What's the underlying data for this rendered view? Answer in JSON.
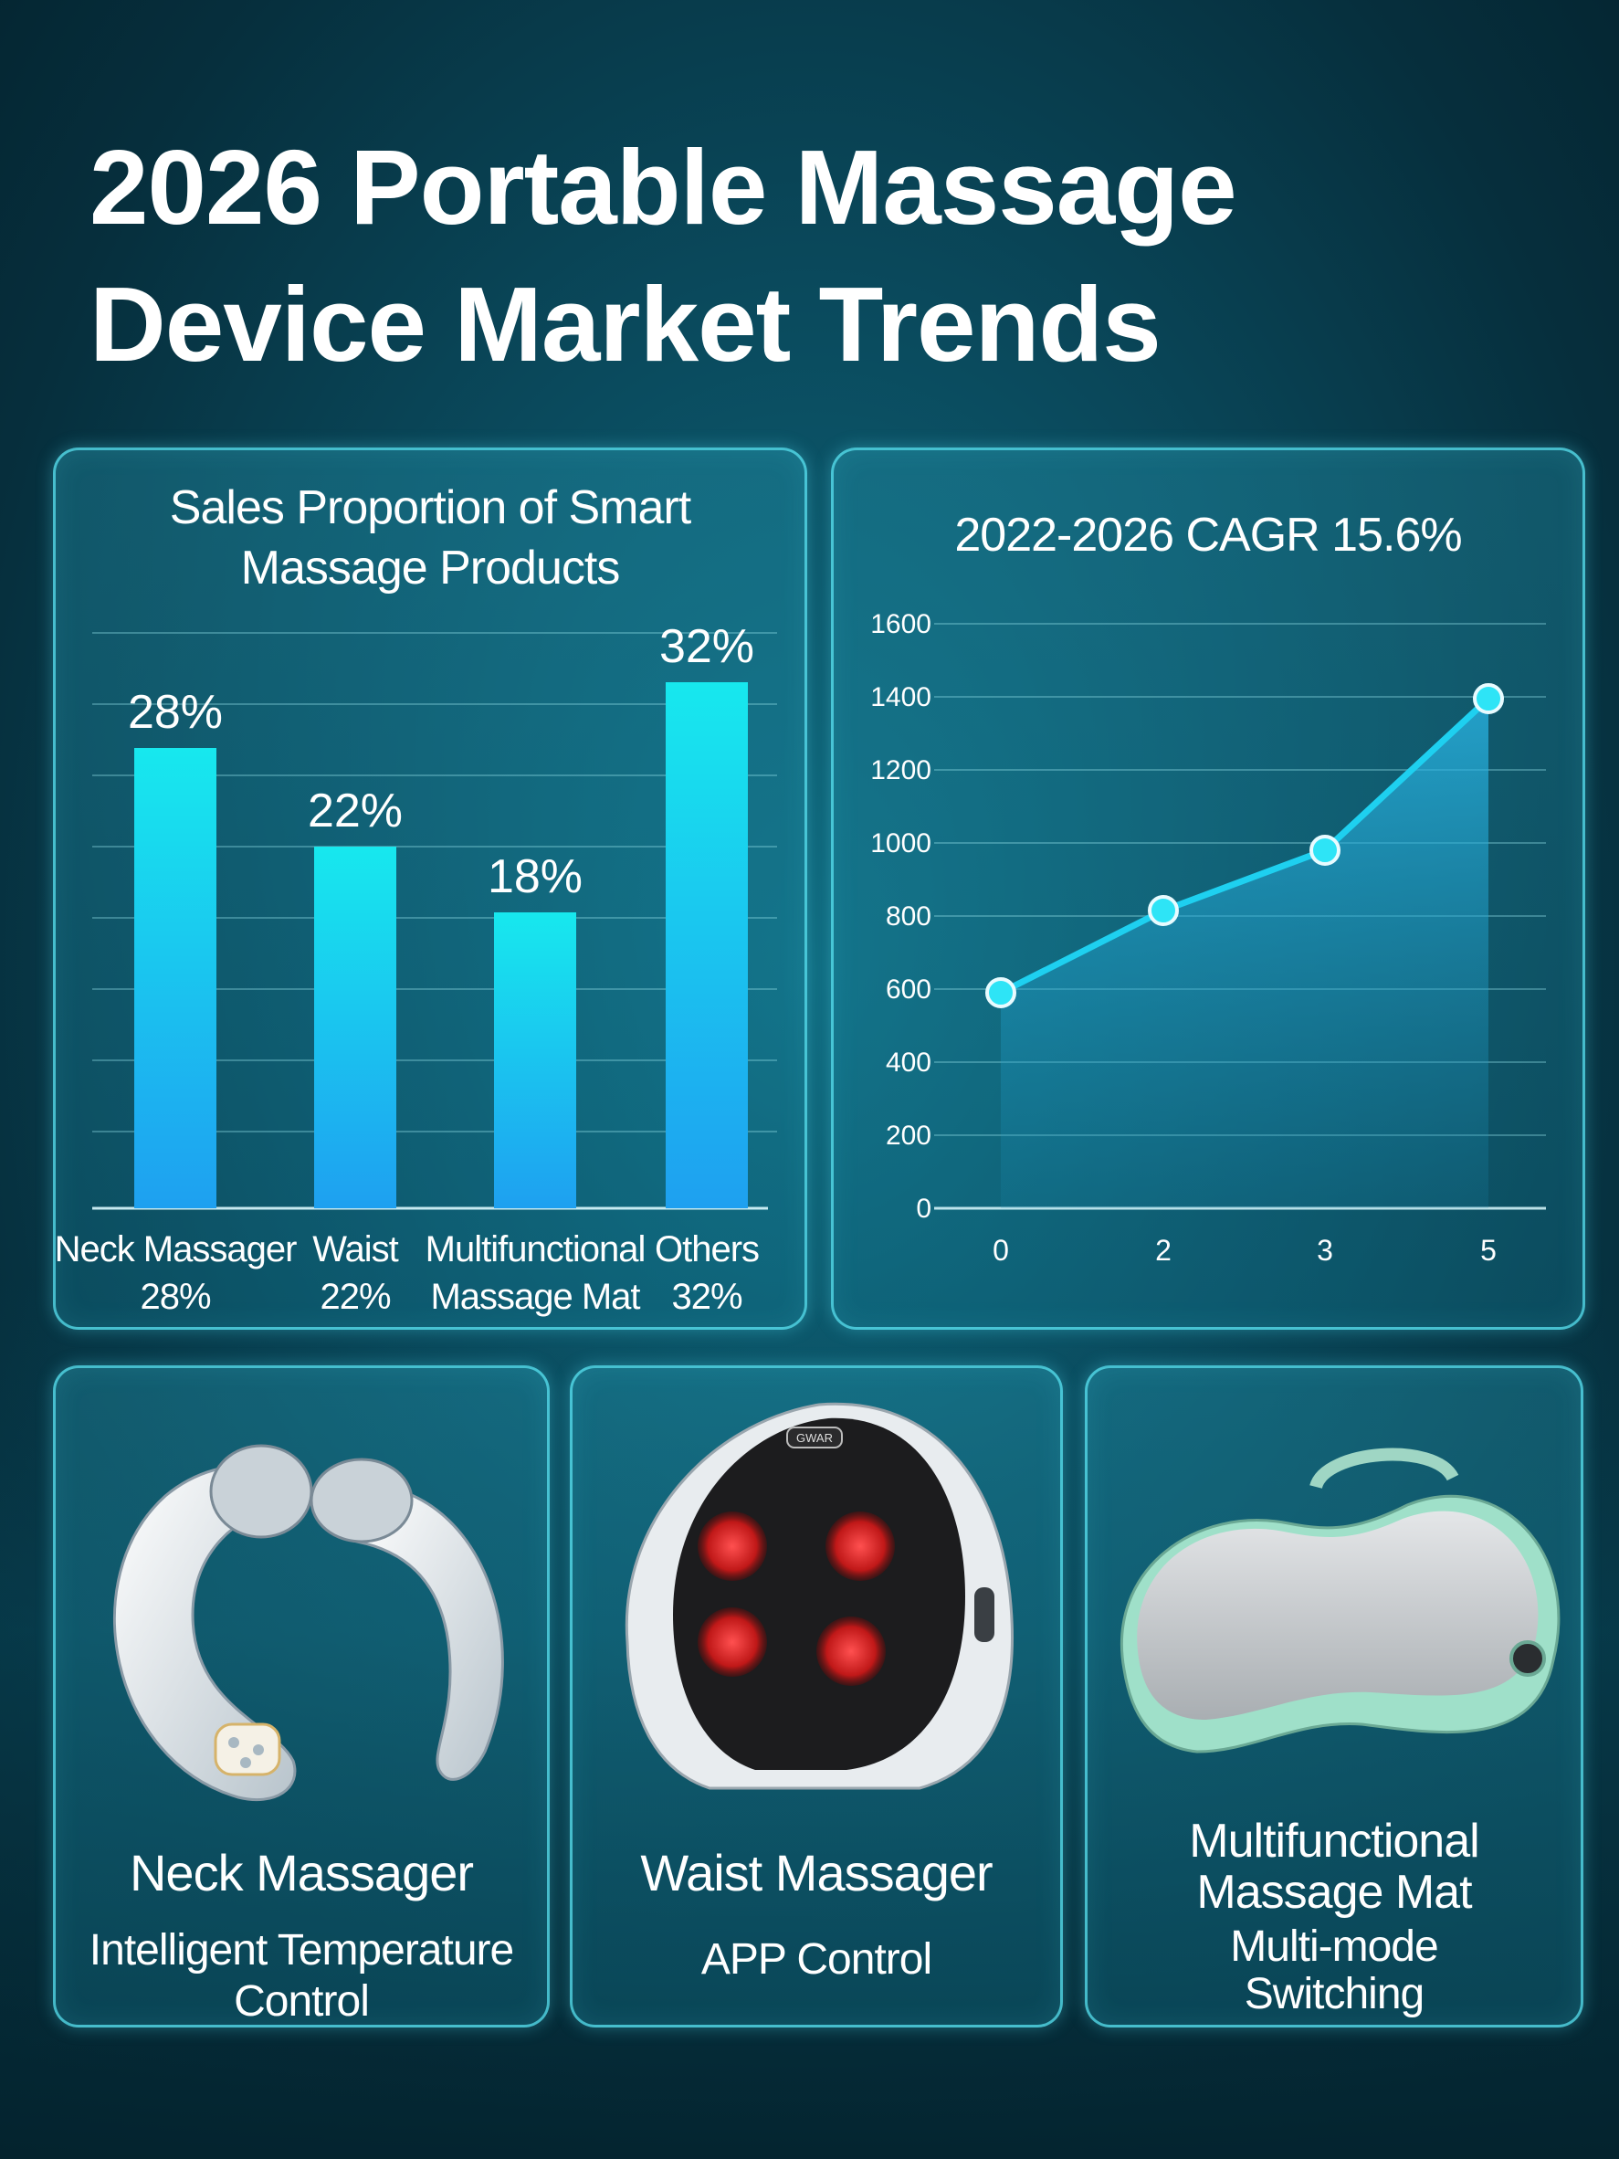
{
  "title_line1": "2026 Portable Massage",
  "title_line2": "Device Market Trends",
  "bar_chart": {
    "title_line1": "Sales Proportion of Smart",
    "title_line2": "Massage Products"
  },
  "line_chart": {
    "title": "2022-2026 CAGR 15.6%"
  },
  "chart_data": [
    {
      "type": "bar",
      "title": "Sales Proportion of Smart Massage Products",
      "categories": [
        "Neck Massager",
        "Waist",
        "Multifunctional Massage Mat",
        "Others"
      ],
      "category_label_lines": [
        [
          "Neck Massager",
          "28%"
        ],
        [
          "Waist",
          "22%"
        ],
        [
          "Multifunctional",
          "Massage Mat"
        ],
        [
          "Others",
          "32%"
        ]
      ],
      "values": [
        28,
        22,
        18,
        32
      ],
      "data_labels": [
        "28%",
        "22%",
        "18%",
        "32%"
      ],
      "unit": "%",
      "ylim": [
        0,
        35
      ],
      "grid": true,
      "bar_color_top": "#17e8ee",
      "bar_color_bottom": "#1ea0f0"
    },
    {
      "type": "area",
      "title": "2022-2026 CAGR 15.6%",
      "x_ticks": [
        "0",
        "2",
        "3",
        "5"
      ],
      "y_ticks": [
        0,
        200,
        400,
        600,
        800,
        1000,
        1200,
        1400,
        1600
      ],
      "points": [
        {
          "x": "0",
          "y": 590
        },
        {
          "x": "2",
          "y": 815
        },
        {
          "x": "3",
          "y": 980
        },
        {
          "x": "5",
          "y": 1395
        }
      ],
      "ylim": [
        0,
        1600
      ],
      "grid": true,
      "line_color": "#1ed0f0",
      "marker_color": "#2ee4f6"
    }
  ],
  "cards": [
    {
      "name": "Neck Massager",
      "feature_lines": [
        "Intelligent Temperature",
        "Control"
      ],
      "icon": "neck-massager-icon"
    },
    {
      "name": "Waist Massager",
      "feature_lines": [
        "APP Control"
      ],
      "icon": "waist-massager-icon",
      "badge_text": "GWAR"
    },
    {
      "name_lines": [
        "Multifunctional",
        "Massage Mat"
      ],
      "feature_lines": [
        "Multi-mode",
        "Switching"
      ],
      "icon": "massage-mat-icon"
    }
  ]
}
